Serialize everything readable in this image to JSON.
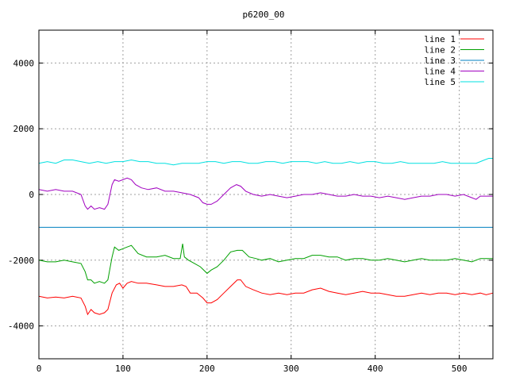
{
  "chart_data": {
    "type": "line",
    "title": "p6200_00",
    "xlabel": "",
    "ylabel": "",
    "xlim": [
      0,
      540
    ],
    "ylim": [
      -5000,
      5000
    ],
    "xticks": [
      0,
      100,
      200,
      300,
      400,
      500
    ],
    "yticks": [
      -4000,
      -2000,
      0,
      2000,
      4000
    ],
    "grid": true,
    "legend": "top-right",
    "series": [
      {
        "name": "line 1",
        "color": "#ff0000",
        "points": [
          [
            0,
            -3100
          ],
          [
            10,
            -3150
          ],
          [
            20,
            -3120
          ],
          [
            30,
            -3150
          ],
          [
            40,
            -3100
          ],
          [
            50,
            -3150
          ],
          [
            55,
            -3400
          ],
          [
            58,
            -3650
          ],
          [
            62,
            -3500
          ],
          [
            66,
            -3600
          ],
          [
            72,
            -3650
          ],
          [
            78,
            -3600
          ],
          [
            82,
            -3500
          ],
          [
            87,
            -3000
          ],
          [
            92,
            -2750
          ],
          [
            96,
            -2700
          ],
          [
            100,
            -2850
          ],
          [
            105,
            -2700
          ],
          [
            110,
            -2650
          ],
          [
            118,
            -2700
          ],
          [
            128,
            -2700
          ],
          [
            140,
            -2750
          ],
          [
            150,
            -2800
          ],
          [
            160,
            -2800
          ],
          [
            170,
            -2750
          ],
          [
            175,
            -2800
          ],
          [
            180,
            -3000
          ],
          [
            188,
            -3000
          ],
          [
            195,
            -3150
          ],
          [
            200,
            -3300
          ],
          [
            205,
            -3300
          ],
          [
            212,
            -3200
          ],
          [
            220,
            -3000
          ],
          [
            228,
            -2800
          ],
          [
            236,
            -2600
          ],
          [
            240,
            -2600
          ],
          [
            246,
            -2800
          ],
          [
            255,
            -2900
          ],
          [
            265,
            -3000
          ],
          [
            275,
            -3050
          ],
          [
            285,
            -3000
          ],
          [
            295,
            -3050
          ],
          [
            305,
            -3000
          ],
          [
            315,
            -3000
          ],
          [
            325,
            -2900
          ],
          [
            335,
            -2850
          ],
          [
            345,
            -2950
          ],
          [
            355,
            -3000
          ],
          [
            365,
            -3050
          ],
          [
            375,
            -3000
          ],
          [
            385,
            -2950
          ],
          [
            395,
            -3000
          ],
          [
            405,
            -3000
          ],
          [
            415,
            -3050
          ],
          [
            425,
            -3100
          ],
          [
            435,
            -3100
          ],
          [
            445,
            -3050
          ],
          [
            455,
            -3000
          ],
          [
            465,
            -3050
          ],
          [
            475,
            -3000
          ],
          [
            485,
            -3000
          ],
          [
            495,
            -3050
          ],
          [
            505,
            -3000
          ],
          [
            515,
            -3050
          ],
          [
            525,
            -3000
          ],
          [
            532,
            -3050
          ],
          [
            540,
            -3000
          ]
        ]
      },
      {
        "name": "line 2",
        "color": "#00a000",
        "points": [
          [
            0,
            -2000
          ],
          [
            10,
            -2050
          ],
          [
            20,
            -2050
          ],
          [
            30,
            -2000
          ],
          [
            40,
            -2050
          ],
          [
            50,
            -2100
          ],
          [
            55,
            -2350
          ],
          [
            58,
            -2600
          ],
          [
            62,
            -2600
          ],
          [
            66,
            -2700
          ],
          [
            72,
            -2650
          ],
          [
            78,
            -2700
          ],
          [
            82,
            -2600
          ],
          [
            87,
            -1900
          ],
          [
            90,
            -1600
          ],
          [
            95,
            -1700
          ],
          [
            100,
            -1650
          ],
          [
            105,
            -1600
          ],
          [
            110,
            -1550
          ],
          [
            118,
            -1800
          ],
          [
            128,
            -1900
          ],
          [
            140,
            -1900
          ],
          [
            150,
            -1850
          ],
          [
            160,
            -1950
          ],
          [
            168,
            -1950
          ],
          [
            171,
            -1500
          ],
          [
            173,
            -1900
          ],
          [
            178,
            -2000
          ],
          [
            185,
            -2100
          ],
          [
            192,
            -2200
          ],
          [
            200,
            -2400
          ],
          [
            205,
            -2300
          ],
          [
            212,
            -2200
          ],
          [
            220,
            -2000
          ],
          [
            228,
            -1750
          ],
          [
            236,
            -1700
          ],
          [
            242,
            -1700
          ],
          [
            250,
            -1900
          ],
          [
            258,
            -1950
          ],
          [
            265,
            -2000
          ],
          [
            275,
            -1950
          ],
          [
            285,
            -2050
          ],
          [
            295,
            -2000
          ],
          [
            305,
            -1950
          ],
          [
            315,
            -1950
          ],
          [
            325,
            -1850
          ],
          [
            335,
            -1850
          ],
          [
            345,
            -1900
          ],
          [
            355,
            -1900
          ],
          [
            365,
            -2000
          ],
          [
            375,
            -1950
          ],
          [
            385,
            -1950
          ],
          [
            395,
            -2000
          ],
          [
            405,
            -2000
          ],
          [
            415,
            -1950
          ],
          [
            425,
            -2000
          ],
          [
            435,
            -2050
          ],
          [
            445,
            -2000
          ],
          [
            455,
            -1950
          ],
          [
            465,
            -2000
          ],
          [
            475,
            -2000
          ],
          [
            485,
            -2000
          ],
          [
            495,
            -1950
          ],
          [
            505,
            -2000
          ],
          [
            515,
            -2050
          ],
          [
            525,
            -1950
          ],
          [
            532,
            -1950
          ],
          [
            540,
            -1950
          ]
        ]
      },
      {
        "name": "line 3",
        "color": "#0080c0",
        "points": [
          [
            0,
            -1000
          ],
          [
            540,
            -1000
          ]
        ]
      },
      {
        "name": "line 4",
        "color": "#a000c0",
        "points": [
          [
            0,
            150
          ],
          [
            10,
            100
          ],
          [
            20,
            150
          ],
          [
            30,
            100
          ],
          [
            40,
            100
          ],
          [
            50,
            0
          ],
          [
            55,
            -350
          ],
          [
            58,
            -450
          ],
          [
            62,
            -350
          ],
          [
            66,
            -450
          ],
          [
            72,
            -400
          ],
          [
            78,
            -450
          ],
          [
            82,
            -300
          ],
          [
            87,
            300
          ],
          [
            90,
            450
          ],
          [
            95,
            400
          ],
          [
            100,
            450
          ],
          [
            105,
            500
          ],
          [
            110,
            450
          ],
          [
            115,
            300
          ],
          [
            122,
            200
          ],
          [
            130,
            150
          ],
          [
            140,
            200
          ],
          [
            150,
            100
          ],
          [
            160,
            100
          ],
          [
            170,
            50
          ],
          [
            180,
            0
          ],
          [
            190,
            -100
          ],
          [
            195,
            -250
          ],
          [
            200,
            -300
          ],
          [
            205,
            -300
          ],
          [
            212,
            -200
          ],
          [
            220,
            0
          ],
          [
            228,
            200
          ],
          [
            235,
            300
          ],
          [
            240,
            250
          ],
          [
            246,
            100
          ],
          [
            255,
            0
          ],
          [
            265,
            -50
          ],
          [
            275,
            0
          ],
          [
            285,
            -50
          ],
          [
            295,
            -100
          ],
          [
            305,
            -50
          ],
          [
            315,
            0
          ],
          [
            325,
            0
          ],
          [
            335,
            50
          ],
          [
            345,
            0
          ],
          [
            355,
            -50
          ],
          [
            365,
            -50
          ],
          [
            375,
            0
          ],
          [
            385,
            -50
          ],
          [
            395,
            -50
          ],
          [
            405,
            -100
          ],
          [
            415,
            -50
          ],
          [
            425,
            -100
          ],
          [
            435,
            -150
          ],
          [
            445,
            -100
          ],
          [
            455,
            -50
          ],
          [
            465,
            -50
          ],
          [
            475,
            0
          ],
          [
            485,
            0
          ],
          [
            495,
            -50
          ],
          [
            505,
            0
          ],
          [
            515,
            -100
          ],
          [
            520,
            -150
          ],
          [
            525,
            -50
          ],
          [
            532,
            -50
          ],
          [
            540,
            -50
          ]
        ]
      },
      {
        "name": "line 5",
        "color": "#00e0e0",
        "points": [
          [
            0,
            950
          ],
          [
            10,
            1000
          ],
          [
            20,
            950
          ],
          [
            30,
            1050
          ],
          [
            40,
            1050
          ],
          [
            50,
            1000
          ],
          [
            60,
            950
          ],
          [
            70,
            1000
          ],
          [
            80,
            950
          ],
          [
            90,
            1000
          ],
          [
            100,
            1000
          ],
          [
            110,
            1050
          ],
          [
            120,
            1000
          ],
          [
            130,
            1000
          ],
          [
            140,
            950
          ],
          [
            150,
            950
          ],
          [
            160,
            900
          ],
          [
            170,
            950
          ],
          [
            180,
            950
          ],
          [
            190,
            950
          ],
          [
            200,
            1000
          ],
          [
            210,
            1000
          ],
          [
            220,
            950
          ],
          [
            230,
            1000
          ],
          [
            240,
            1000
          ],
          [
            250,
            950
          ],
          [
            260,
            950
          ],
          [
            270,
            1000
          ],
          [
            280,
            1000
          ],
          [
            290,
            950
          ],
          [
            300,
            1000
          ],
          [
            310,
            1000
          ],
          [
            320,
            1000
          ],
          [
            330,
            950
          ],
          [
            340,
            1000
          ],
          [
            350,
            950
          ],
          [
            360,
            950
          ],
          [
            370,
            1000
          ],
          [
            380,
            950
          ],
          [
            390,
            1000
          ],
          [
            400,
            1000
          ],
          [
            410,
            950
          ],
          [
            420,
            950
          ],
          [
            430,
            1000
          ],
          [
            440,
            950
          ],
          [
            450,
            950
          ],
          [
            460,
            950
          ],
          [
            470,
            950
          ],
          [
            480,
            1000
          ],
          [
            490,
            950
          ],
          [
            500,
            950
          ],
          [
            510,
            950
          ],
          [
            520,
            950
          ],
          [
            525,
            1000
          ],
          [
            530,
            1050
          ],
          [
            535,
            1100
          ],
          [
            540,
            1100
          ]
        ]
      }
    ]
  }
}
